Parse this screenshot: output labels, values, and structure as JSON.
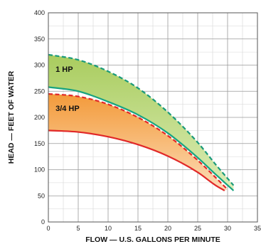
{
  "chart_data": {
    "type": "area",
    "xlabel": "FLOW — U.S. GALLONS PER MINUTE",
    "ylabel": "HEAD — FEET OF WATER",
    "xlim": [
      0,
      35
    ],
    "ylim": [
      0,
      400
    ],
    "x_ticks": [
      "0",
      "5",
      "10",
      "15",
      "20",
      "25",
      "30",
      "35"
    ],
    "y_ticks": [
      "0",
      "50",
      "100",
      "150",
      "200",
      "250",
      "300",
      "350",
      "400"
    ],
    "x_tick_values": [
      0,
      5,
      10,
      15,
      20,
      25,
      30,
      35
    ],
    "y_tick_values": [
      0,
      50,
      100,
      150,
      200,
      250,
      300,
      350,
      400
    ],
    "grid": true,
    "minor_grid": true,
    "bands": [
      {
        "name": "1 HP",
        "fill_top": "#a9cc5e",
        "fill_bottom": "#dcedb8",
        "upper": {
          "style": "dashed",
          "color": "#1a9a7a",
          "x": [
            0,
            5,
            10,
            15,
            20,
            25,
            28,
            31
          ],
          "y": [
            320,
            310,
            288,
            256,
            210,
            152,
            110,
            70
          ]
        },
        "lower": {
          "style": "solid",
          "color": "#18a37f",
          "x": [
            0,
            5,
            10,
            15,
            20,
            25,
            28,
            31
          ],
          "y": [
            258,
            250,
            230,
            205,
            170,
            123,
            91,
            60
          ]
        }
      },
      {
        "name": "3/4 HP",
        "fill_top": "#f39a3a",
        "fill_bottom": "#fcdcb7",
        "upper": {
          "style": "dashed",
          "color": "#e12828",
          "x": [
            0,
            5,
            10,
            15,
            20,
            25,
            28,
            30
          ],
          "y": [
            245,
            240,
            225,
            200,
            165,
            118,
            85,
            62
          ]
        },
        "lower": {
          "style": "solid",
          "color": "#e12828",
          "x": [
            0,
            5,
            10,
            15,
            20,
            25,
            28,
            29.5
          ],
          "y": [
            175,
            172,
            163,
            148,
            126,
            95,
            70,
            60
          ]
        }
      }
    ]
  }
}
